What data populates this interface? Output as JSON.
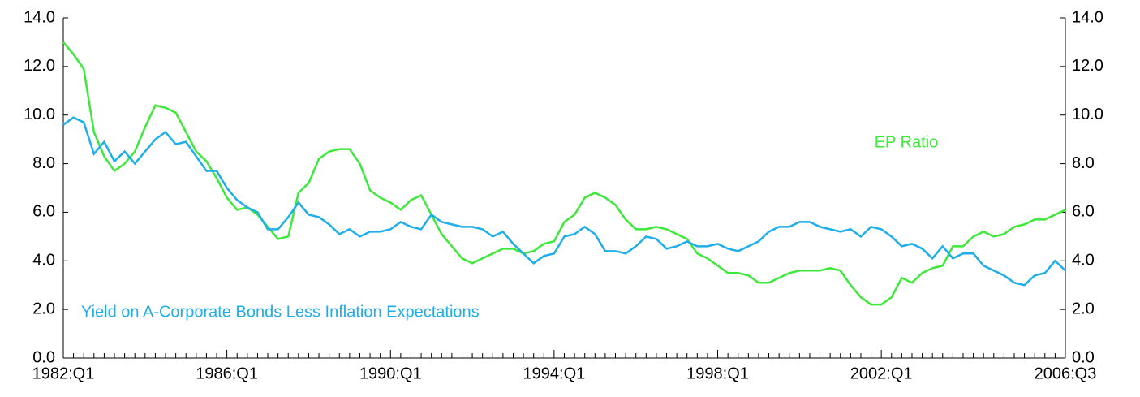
{
  "chart_data": {
    "type": "line",
    "categories": [
      "1982:Q1",
      null,
      null,
      null,
      null,
      null,
      null,
      null,
      null,
      null,
      null,
      null,
      null,
      null,
      null,
      null,
      "1986:Q1",
      null,
      null,
      null,
      null,
      null,
      null,
      null,
      null,
      null,
      null,
      null,
      null,
      null,
      null,
      null,
      "1990:Q1",
      null,
      null,
      null,
      null,
      null,
      null,
      null,
      null,
      null,
      null,
      null,
      null,
      null,
      null,
      null,
      "1994:Q1",
      null,
      null,
      null,
      null,
      null,
      null,
      null,
      null,
      null,
      null,
      null,
      null,
      null,
      null,
      null,
      "1998:Q1",
      null,
      null,
      null,
      null,
      null,
      null,
      null,
      null,
      null,
      null,
      null,
      null,
      null,
      null,
      null,
      "2002:Q1",
      null,
      null,
      null,
      null,
      null,
      null,
      null,
      null,
      null,
      null,
      null,
      null,
      null,
      null,
      null,
      null,
      null,
      "2006:Q3"
    ],
    "series": [
      {
        "name": "EP Ratio",
        "color": "#3ee83a",
        "values": [
          13.0,
          12.5,
          11.9,
          9.3,
          8.3,
          7.7,
          8.0,
          8.5,
          9.5,
          10.4,
          10.3,
          10.1,
          9.3,
          8.5,
          8.1,
          7.4,
          6.6,
          6.1,
          6.2,
          5.9,
          5.4,
          4.9,
          5.0,
          6.8,
          7.2,
          8.2,
          8.5,
          8.6,
          8.6,
          8.0,
          6.9,
          6.6,
          6.4,
          6.1,
          6.5,
          6.7,
          5.9,
          5.1,
          4.6,
          4.1,
          3.9,
          4.1,
          4.3,
          4.5,
          4.5,
          4.3,
          4.4,
          4.7,
          4.8,
          5.6,
          5.9,
          6.6,
          6.8,
          6.6,
          6.3,
          5.7,
          5.3,
          5.3,
          5.4,
          5.3,
          5.1,
          4.9,
          4.3,
          4.1,
          3.8,
          3.5,
          3.5,
          3.4,
          3.1,
          3.1,
          3.3,
          3.5,
          3.6,
          3.6,
          3.6,
          3.7,
          3.6,
          3.0,
          2.5,
          2.2,
          2.2,
          2.5,
          3.3,
          3.1,
          3.5,
          3.7,
          3.8,
          4.6,
          4.6,
          5.0,
          5.2,
          5.0,
          5.1,
          5.4,
          5.5,
          5.7,
          5.7,
          5.9,
          6.1
        ]
      },
      {
        "name": "Yield on A-Corporate Bonds Less Inflation Expectations",
        "color": "#1eaeea",
        "values": [
          9.6,
          9.9,
          9.7,
          8.4,
          8.9,
          8.1,
          8.5,
          8.0,
          8.5,
          9.0,
          9.3,
          8.8,
          8.9,
          8.3,
          7.7,
          7.7,
          7.0,
          6.5,
          6.2,
          6.0,
          5.3,
          5.3,
          5.8,
          6.4,
          5.9,
          5.8,
          5.5,
          5.1,
          5.3,
          5.0,
          5.2,
          5.2,
          5.3,
          5.6,
          5.4,
          5.3,
          5.9,
          5.6,
          5.5,
          5.4,
          5.4,
          5.3,
          5.0,
          5.2,
          4.7,
          4.3,
          3.9,
          4.2,
          4.3,
          5.0,
          5.1,
          5.4,
          5.1,
          4.4,
          4.4,
          4.3,
          4.6,
          5.0,
          4.9,
          4.5,
          4.6,
          4.8,
          4.6,
          4.6,
          4.7,
          4.5,
          4.4,
          4.6,
          4.8,
          5.2,
          5.4,
          5.4,
          5.6,
          5.6,
          5.4,
          5.3,
          5.2,
          5.3,
          5.0,
          5.4,
          5.3,
          5.0,
          4.6,
          4.7,
          4.5,
          4.1,
          4.6,
          4.1,
          4.3,
          4.3,
          3.8,
          3.6,
          3.4,
          3.1,
          3.0,
          3.4,
          3.5,
          4.0,
          3.6
        ]
      }
    ],
    "ylim": [
      0,
      14
    ],
    "yticks": [
      {
        "value": 0,
        "label": "0.0"
      },
      {
        "value": 2,
        "label": "2.0"
      },
      {
        "value": 4,
        "label": "4.0"
      },
      {
        "value": 6,
        "label": "6.0"
      },
      {
        "value": 8,
        "label": "8.0"
      },
      {
        "value": 10,
        "label": "10.0"
      },
      {
        "value": 12,
        "label": "12.0"
      },
      {
        "value": 14,
        "label": "14.0"
      }
    ],
    "y2lim": [
      0,
      14
    ],
    "y2ticks": [
      {
        "value": 0,
        "label": "0.0"
      },
      {
        "value": 2,
        "label": "2.0"
      },
      {
        "value": 4,
        "label": "4.0"
      },
      {
        "value": 6,
        "label": "6.0"
      },
      {
        "value": 8,
        "label": "8.0"
      },
      {
        "value": 10,
        "label": "10.0"
      },
      {
        "value": 12,
        "label": "12.0"
      },
      {
        "value": 14,
        "label": "14.0"
      }
    ]
  }
}
